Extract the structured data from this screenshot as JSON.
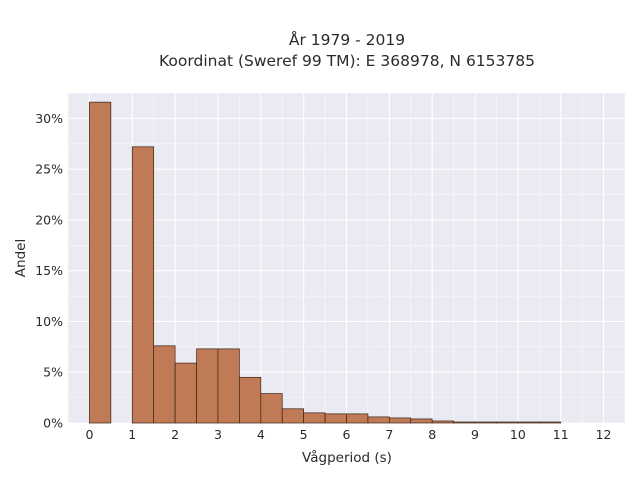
{
  "chart_data": {
    "type": "bar",
    "title_line1": "År 1979 - 2019",
    "title_line2": "Koordinat (Sweref 99 TM): E 368978, N 6153785",
    "xlabel": "Vågperiod (s)",
    "ylabel": "Andel",
    "x_ticks": [
      "0",
      "1",
      "2",
      "3",
      "4",
      "5",
      "6",
      "7",
      "8",
      "9",
      "10",
      "11",
      "12"
    ],
    "y_ticks": [
      "0%",
      "5%",
      "10%",
      "15%",
      "20%",
      "25%",
      "30%"
    ],
    "xlim": [
      -0.5,
      12.5
    ],
    "ylim": [
      0,
      0.325
    ],
    "bin_width": 0.5,
    "bins": [
      {
        "start": 0.0,
        "value": 0.316
      },
      {
        "start": 0.5,
        "value": 0.0
      },
      {
        "start": 1.0,
        "value": 0.272
      },
      {
        "start": 1.5,
        "value": 0.076
      },
      {
        "start": 2.0,
        "value": 0.059
      },
      {
        "start": 2.5,
        "value": 0.073
      },
      {
        "start": 3.0,
        "value": 0.073
      },
      {
        "start": 3.5,
        "value": 0.045
      },
      {
        "start": 4.0,
        "value": 0.029
      },
      {
        "start": 4.5,
        "value": 0.014
      },
      {
        "start": 5.0,
        "value": 0.01
      },
      {
        "start": 5.5,
        "value": 0.009
      },
      {
        "start": 6.0,
        "value": 0.009
      },
      {
        "start": 6.5,
        "value": 0.006
      },
      {
        "start": 7.0,
        "value": 0.005
      },
      {
        "start": 7.5,
        "value": 0.004
      },
      {
        "start": 8.0,
        "value": 0.002
      },
      {
        "start": 8.5,
        "value": 0.001
      },
      {
        "start": 9.0,
        "value": 0.001
      },
      {
        "start": 9.5,
        "value": 0.001
      },
      {
        "start": 10.0,
        "value": 0.001
      },
      {
        "start": 10.5,
        "value": 0.001
      }
    ],
    "grid": true,
    "bar_color": "#c07a55",
    "bar_edge_color": "#3a2418",
    "background_color": "#eaeaf2",
    "grid_color": "#ffffff"
  }
}
